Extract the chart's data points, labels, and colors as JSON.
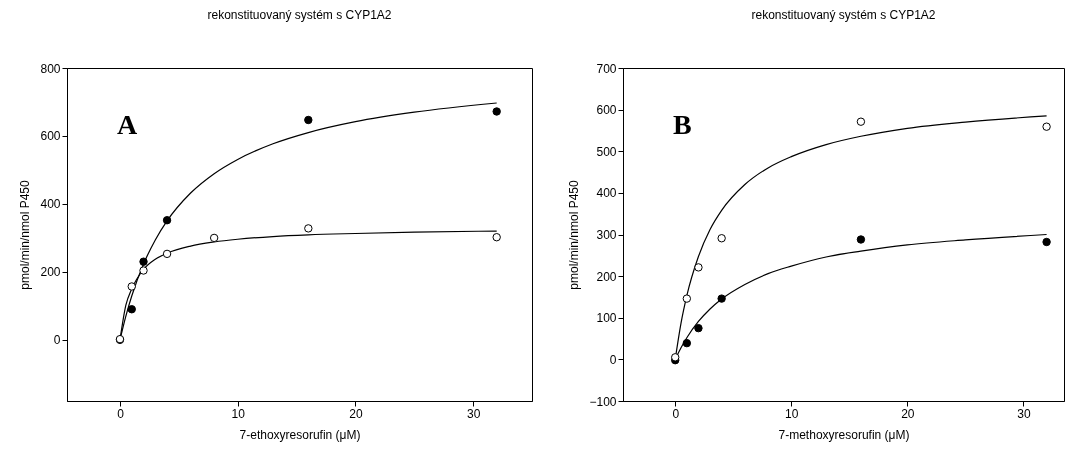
{
  "chart_data": [
    {
      "type": "scatter",
      "title": "rekonstituovaný systém s CYP1A2",
      "xlabel": "7-ethoxyresorufin (μM)",
      "ylabel": "pmol/min/nmol P450",
      "annotations": [
        "A"
      ],
      "x": [
        0,
        1,
        2,
        4,
        16,
        32
      ],
      "xlim": [
        -4.5,
        35
      ],
      "xticks": [
        0,
        10,
        20,
        30
      ],
      "ylim": [
        -180,
        800
      ],
      "yticks": [
        0,
        200,
        400,
        600,
        800
      ],
      "grid": false,
      "series": [
        {
          "color": "#000000",
          "marker": "circle",
          "values": [
            0,
            90,
            230,
            352,
            647,
            672
          ]
        },
        {
          "color": "#ffffff",
          "marker": "circle",
          "x": [
            0,
            1,
            2,
            4,
            8,
            16,
            32
          ],
          "values": [
            2,
            157,
            204,
            253,
            300,
            328,
            302
          ]
        },
        {
          "type": "line",
          "color": "#000000",
          "marker": "none",
          "x": [
            0,
            0.5,
            1,
            2,
            3,
            4,
            6,
            8,
            10,
            13,
            16,
            20,
            25,
            32
          ],
          "values": [
            0,
            70,
            129,
            223,
            294,
            350,
            432,
            489,
            531,
            577,
            610,
            642,
            670,
            697
          ]
        },
        {
          "type": "line",
          "color": "#000000",
          "marker": "none",
          "x": [
            0,
            0.5,
            1,
            2,
            3,
            4,
            6,
            8,
            10,
            13,
            16,
            20,
            25,
            32
          ],
          "values": [
            0,
            102,
            150,
            207,
            237,
            255,
            276,
            288,
            296,
            304,
            309,
            313,
            317,
            320
          ]
        }
      ]
    },
    {
      "type": "scatter",
      "title": "rekonstituovaný systém s CYP1A2",
      "xlabel": "7-methoxyresorufin (μM)",
      "ylabel": "pmol/min/nmol P450",
      "annotations": [
        "B"
      ],
      "x": [
        0,
        1,
        2,
        4,
        16,
        32
      ],
      "xlim": [
        -4.5,
        33.5
      ],
      "xticks": [
        0,
        10,
        20,
        30
      ],
      "ylim": [
        -100,
        700
      ],
      "yticks": [
        -100,
        0,
        100,
        200,
        300,
        400,
        500,
        600,
        700
      ],
      "grid": false,
      "series": [
        {
          "color": "#000000",
          "marker": "circle",
          "values": [
            -2,
            39,
            75,
            146,
            288,
            282
          ]
        },
        {
          "color": "#ffffff",
          "marker": "circle",
          "values": [
            5,
            146,
            221,
            291,
            571,
            559
          ]
        },
        {
          "type": "line",
          "color": "#000000",
          "marker": "none",
          "x": [
            0,
            0.5,
            1,
            2,
            3,
            4,
            6,
            8,
            10,
            13,
            16,
            20,
            25,
            32
          ],
          "values": [
            0,
            87,
            153,
            247,
            312,
            358,
            420,
            460,
            487,
            516,
            536,
            555,
            570,
            585
          ]
        },
        {
          "type": "line",
          "color": "#000000",
          "marker": "none",
          "x": [
            0,
            0.5,
            1,
            2,
            3,
            4,
            6,
            8,
            10,
            13,
            16,
            20,
            25,
            32
          ],
          "values": [
            0,
            28,
            52,
            91,
            121,
            145,
            180,
            206,
            224,
            246,
            260,
            275,
            287,
            300
          ]
        }
      ]
    }
  ]
}
